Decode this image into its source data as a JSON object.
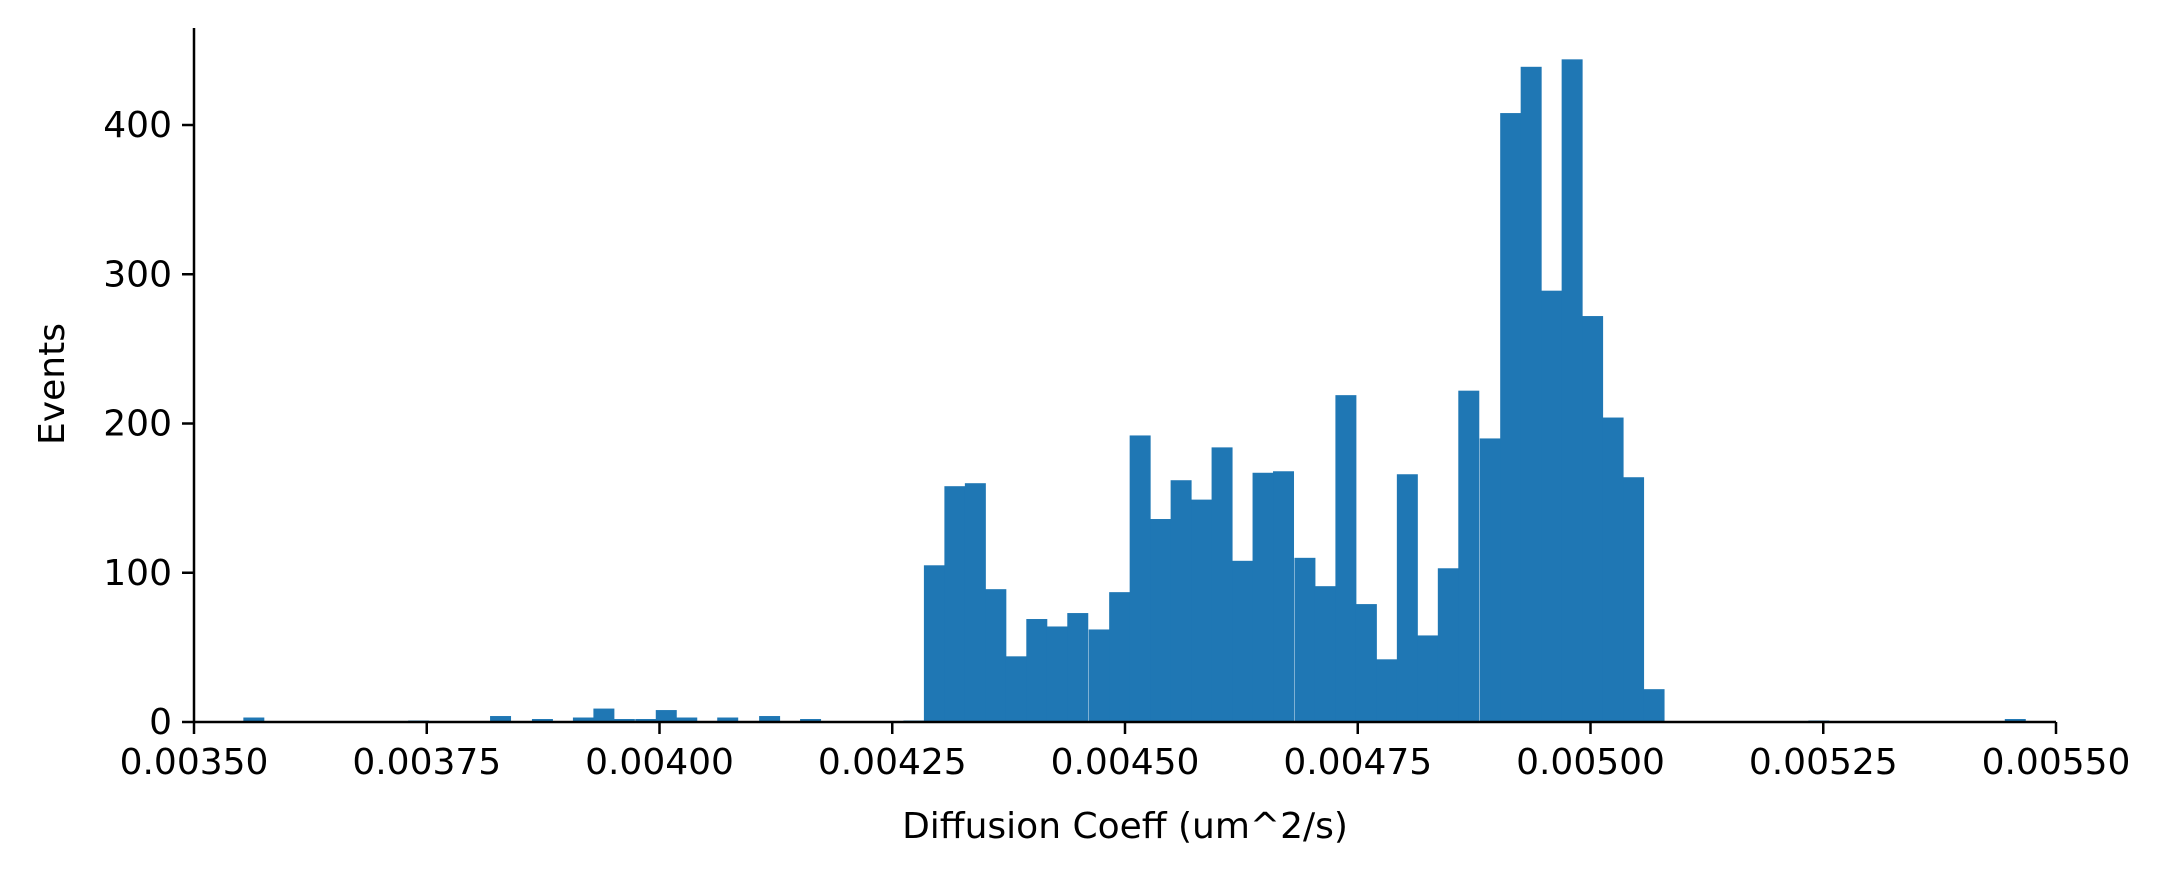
{
  "chart_data": {
    "type": "bar",
    "title": "",
    "xlabel": "Diffusion Coeff (um^2/s)",
    "ylabel": "Events",
    "xlim": [
      0.0035,
      0.0055
    ],
    "ylim": [
      0,
      465
    ],
    "grid": false,
    "legend": "none",
    "color": "#1f77b4",
    "x_ticks": [
      {
        "value": 0.0035,
        "label": "0.00350"
      },
      {
        "value": 0.00375,
        "label": "0.00375"
      },
      {
        "value": 0.004,
        "label": "0.00400"
      },
      {
        "value": 0.00425,
        "label": "0.00425"
      },
      {
        "value": 0.0045,
        "label": "0.00450"
      },
      {
        "value": 0.00475,
        "label": "0.00475"
      },
      {
        "value": 0.005,
        "label": "0.00500"
      },
      {
        "value": 0.00525,
        "label": "0.00525"
      },
      {
        "value": 0.0055,
        "label": "0.00550"
      }
    ],
    "y_ticks": [
      {
        "value": 0,
        "label": "0"
      },
      {
        "value": 100,
        "label": "100"
      },
      {
        "value": 200,
        "label": "200"
      },
      {
        "value": 300,
        "label": "300"
      },
      {
        "value": 400,
        "label": "400"
      }
    ],
    "bin_width": 2.21e-05,
    "bin_edges_start": [
      0.003553,
      0.00373,
      0.003818,
      0.003863,
      0.003907,
      0.003929,
      0.003951,
      0.003974,
      0.003996,
      0.004018,
      0.004062,
      0.004107,
      0.004151,
      0.004262,
      0.004284,
      0.004306,
      0.004328,
      0.00435,
      0.004372,
      0.004394,
      0.004416,
      0.004438,
      0.004461,
      0.004483,
      0.004505,
      0.004527,
      0.004549,
      0.004571,
      0.004593,
      0.004615,
      0.004637,
      0.004659,
      0.004682,
      0.004704,
      0.004726,
      0.004748,
      0.00477,
      0.004792,
      0.004814,
      0.004836,
      0.004858,
      0.004881,
      0.004903,
      0.004925,
      0.004947,
      0.004969,
      0.004991,
      0.005013,
      0.005035,
      0.005057,
      0.005234,
      0.005445
    ],
    "values": [
      3,
      1,
      4,
      2,
      3,
      9,
      2,
      2,
      8,
      3,
      3,
      4,
      2,
      1,
      105,
      158,
      160,
      89,
      44,
      69,
      64,
      73,
      62,
      87,
      192,
      136,
      162,
      149,
      184,
      108,
      167,
      168,
      110,
      91,
      219,
      79,
      42,
      166,
      58,
      103,
      222,
      190,
      408,
      439,
      289,
      444,
      272,
      204,
      164,
      22,
      1,
      2
    ]
  }
}
